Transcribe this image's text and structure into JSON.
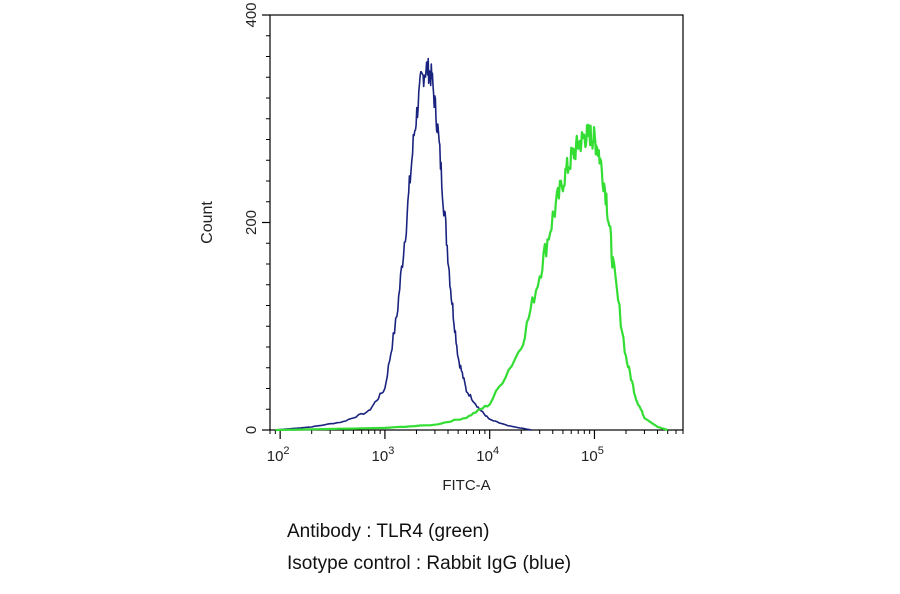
{
  "chart_data": {
    "type": "area",
    "title": "",
    "xlabel": "FITC-A",
    "ylabel": "Count",
    "x_scale": "log",
    "xlim": [
      80,
      700000
    ],
    "ylim": [
      0,
      400
    ],
    "y_ticks": [
      0,
      200,
      400
    ],
    "y_tick_labels": [
      "0",
      "200",
      "400"
    ],
    "x_ticks": [
      100,
      1000,
      10000,
      100000
    ],
    "x_tick_labels": [
      {
        "base": "10",
        "exp": "2"
      },
      {
        "base": "10",
        "exp": "3"
      },
      {
        "base": "10",
        "exp": "4"
      },
      {
        "base": "10",
        "exp": "5"
      }
    ],
    "grid": false,
    "series": [
      {
        "name": "Rabbit IgG",
        "color": "#1a237e",
        "x": [
          90,
          200,
          400,
          700,
          1000,
          1300,
          1600,
          1900,
          2200,
          2500,
          2800,
          3200,
          3700,
          4300,
          5000,
          6000,
          8000,
          10000,
          15000,
          25000
        ],
        "y": [
          0,
          3,
          8,
          18,
          40,
          110,
          200,
          285,
          335,
          350,
          340,
          290,
          210,
          130,
          70,
          38,
          20,
          10,
          4,
          0
        ]
      },
      {
        "name": "TLR4",
        "color": "#33dd33",
        "x": [
          90,
          1000,
          3000,
          6000,
          10000,
          20000,
          30000,
          40000,
          50000,
          60000,
          70000,
          80000,
          90000,
          100000,
          110000,
          130000,
          150000,
          200000,
          250000,
          300000,
          400000,
          500000
        ],
        "y": [
          0,
          2,
          5,
          12,
          25,
          80,
          150,
          205,
          240,
          262,
          275,
          282,
          285,
          280,
          268,
          225,
          160,
          70,
          30,
          12,
          3,
          0
        ]
      }
    ]
  },
  "captions": {
    "antibody": "Antibody : TLR4 (green)",
    "isotype": "Isotype control : Rabbit IgG (blue)"
  }
}
